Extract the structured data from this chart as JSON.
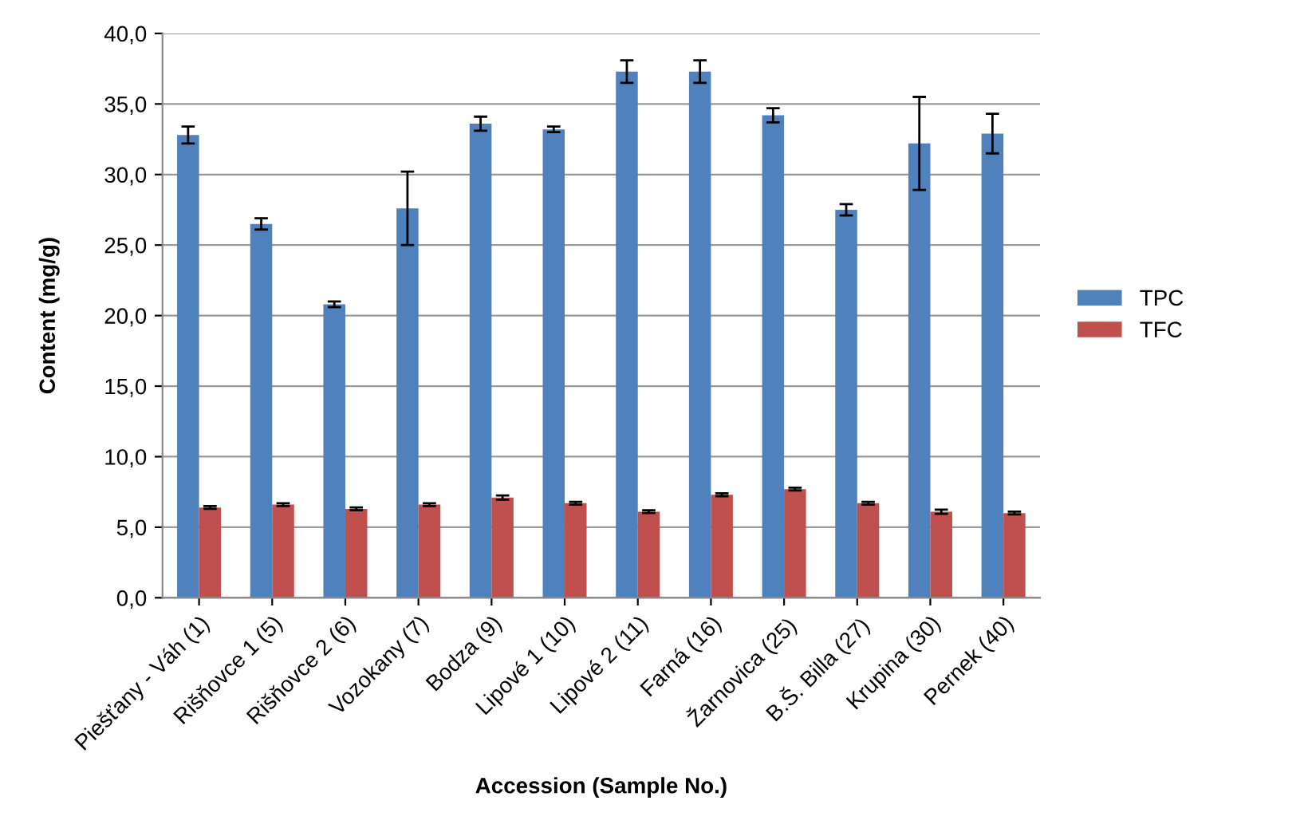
{
  "chart_data": {
    "type": "bar",
    "xlabel": "Accession (Sample No.)",
    "ylabel": "Content (mg/g)",
    "categories": [
      "Piešťany - Váh (1)",
      "Rišňovce 1 (5)",
      "Rišňovce 2 (6)",
      "Vozokany (7)",
      "Bodza (9)",
      "Lipové 1 (10)",
      "Lipové 2 (11)",
      "Farná (16)",
      "Žarnovica (25)",
      "B.Š. Billa (27)",
      "Krupina (30)",
      "Pernek (40)"
    ],
    "series": [
      {
        "name": "TPC",
        "color": "#4f81bd",
        "values": [
          32.8,
          26.5,
          20.8,
          27.6,
          33.6,
          33.2,
          37.3,
          37.3,
          34.2,
          27.5,
          32.2,
          32.9
        ],
        "errors": [
          0.6,
          0.4,
          0.2,
          2.6,
          0.5,
          0.2,
          0.8,
          0.8,
          0.5,
          0.4,
          3.3,
          1.4
        ]
      },
      {
        "name": "TFC",
        "color": "#c0504d",
        "values": [
          6.4,
          6.6,
          6.3,
          6.6,
          7.1,
          6.7,
          6.1,
          7.3,
          7.7,
          6.7,
          6.1,
          6.0
        ],
        "errors": [
          0.1,
          0.1,
          0.1,
          0.1,
          0.15,
          0.1,
          0.1,
          0.1,
          0.1,
          0.1,
          0.15,
          0.1
        ]
      }
    ],
    "ylim": [
      0,
      40
    ],
    "yticks": [
      {
        "value": 0,
        "label": "0,0"
      },
      {
        "value": 5,
        "label": "5,0"
      },
      {
        "value": 10,
        "label": "10,0"
      },
      {
        "value": 15,
        "label": "15,0"
      },
      {
        "value": 20,
        "label": "20,0"
      },
      {
        "value": 25,
        "label": "25,0"
      },
      {
        "value": 30,
        "label": "30,0"
      },
      {
        "value": 35,
        "label": "35,0"
      },
      {
        "value": 40,
        "label": "40,0"
      }
    ],
    "grid": "y",
    "legend": "right"
  }
}
